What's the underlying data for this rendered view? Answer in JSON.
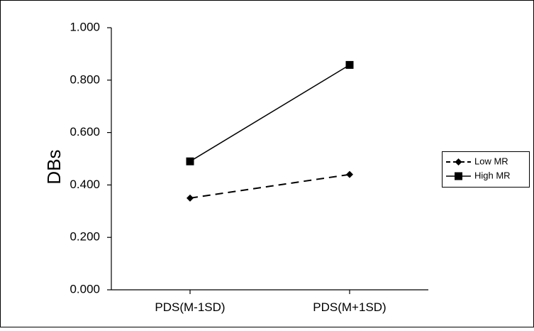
{
  "chart_data": {
    "type": "line",
    "categories": [
      "PDS(M-1SD)",
      "PDS(M+1SD)"
    ],
    "series": [
      {
        "name": "Low MR",
        "values": [
          0.35,
          0.44
        ],
        "color": "#000000",
        "line_style": "dashed",
        "marker": "diamond"
      },
      {
        "name": "High MR",
        "values": [
          0.49,
          0.858
        ],
        "color": "#000000",
        "line_style": "solid",
        "marker": "square"
      }
    ],
    "title": "",
    "xlabel": "",
    "ylabel": "DBs",
    "ylim": [
      0,
      1
    ],
    "yticks": [
      "0.000",
      "0.200",
      "0.400",
      "0.600",
      "0.800",
      "1.000"
    ],
    "yticks_values": [
      0,
      0.2,
      0.4,
      0.6,
      0.8,
      1.0
    ],
    "grid": false,
    "legend_position": "right"
  }
}
